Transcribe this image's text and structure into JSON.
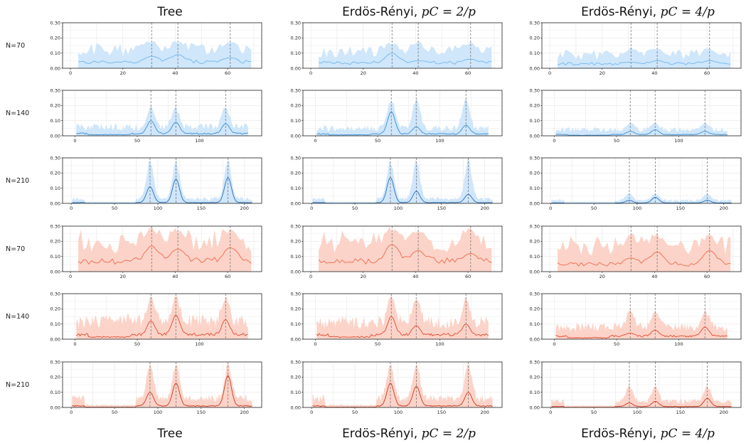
{
  "column_titles_top": [
    {
      "text": "Tree",
      "math": ""
    },
    {
      "text": "Erdös-Rényi, ",
      "math": "pC = 2/p"
    },
    {
      "text": "Erdös-Rényi, ",
      "math": "pC = 4/p"
    }
  ],
  "column_titles_bottom": [
    {
      "text": "Tree",
      "math": ""
    },
    {
      "text": "Erdös-Rényi, ",
      "math": "pC = 2/p"
    },
    {
      "text": "Erdös-Rényi, ",
      "math": "pC = 4/p"
    }
  ],
  "row_labels": [
    "N=70",
    "N=140",
    "N=210",
    "N=70",
    "N=140",
    "N=210"
  ],
  "colors": {
    "blue_line": [
      "#6fb6ee",
      "#3e8fd4",
      "#2a6db5"
    ],
    "blue_band": "#cfe6fb",
    "red_line": [
      "#ee6a4c",
      "#df4b2e",
      "#c9381f"
    ],
    "red_band": "#fcd3c8",
    "vline": "#777777",
    "grid": "#e6e6e6"
  },
  "chart_data": {
    "type": "line",
    "ylim": [
      0,
      0.3
    ],
    "yticks": [
      "0.00",
      "0.10",
      "0.20",
      "0.30"
    ],
    "vlines_p70": [
      31,
      41,
      61
    ],
    "vlines_p210": [
      91,
      121,
      181
    ],
    "grid": true,
    "rows": [
      {
        "label": "N=70",
        "group": "blue",
        "p": 70,
        "xticks": [
          0,
          20,
          40,
          60
        ],
        "panels": [
          {
            "peak_mean": [
              0.08,
              0.09,
              0.07
            ],
            "base_mean": 0.04,
            "base_upper": 0.12,
            "peak_upper": 0.19
          },
          {
            "peak_mean": [
              0.1,
              0.05,
              0.06
            ],
            "base_mean": 0.035,
            "base_upper": 0.11,
            "peak_upper": 0.18
          },
          {
            "peak_mean": [
              0.04,
              0.05,
              0.05
            ],
            "base_mean": 0.03,
            "base_upper": 0.09,
            "peak_upper": 0.14
          }
        ]
      },
      {
        "label": "N=140",
        "group": "blue",
        "p": 140,
        "xticks": [
          0,
          50,
          100
        ],
        "panels": [
          {
            "peak_mean": [
              0.1,
              0.09,
              0.08
            ],
            "base_mean": 0.015,
            "base_upper": 0.06,
            "peak_upper": 0.2
          },
          {
            "peak_mean": [
              0.16,
              0.06,
              0.07
            ],
            "base_mean": 0.012,
            "base_upper": 0.05,
            "peak_upper": 0.26
          },
          {
            "peak_mean": [
              0.03,
              0.04,
              0.03
            ],
            "base_mean": 0.008,
            "base_upper": 0.04,
            "peak_upper": 0.09
          }
        ]
      },
      {
        "label": "N=210",
        "group": "blue",
        "p": 210,
        "xticks": [
          0,
          50,
          100,
          150,
          200
        ],
        "panels": [
          {
            "peak_mean": [
              0.11,
              0.16,
              0.17
            ],
            "base_mean": 0.005,
            "base_upper": 0.03,
            "peak_upper": 0.3
          },
          {
            "peak_mean": [
              0.17,
              0.08,
              0.06
            ],
            "base_mean": 0.005,
            "base_upper": 0.03,
            "peak_upper": 0.3
          },
          {
            "peak_mean": [
              0.02,
              0.04,
              0.02
            ],
            "base_mean": 0.003,
            "base_upper": 0.02,
            "peak_upper": 0.07
          }
        ]
      },
      {
        "label": "N=70",
        "group": "red",
        "p": 70,
        "xticks": [
          0,
          20,
          40,
          60
        ],
        "panels": [
          {
            "peak_mean": [
              0.17,
              0.15,
              0.16
            ],
            "base_mean": 0.07,
            "base_upper": 0.2,
            "peak_upper": 0.3
          },
          {
            "peak_mean": [
              0.18,
              0.14,
              0.12
            ],
            "base_mean": 0.07,
            "base_upper": 0.2,
            "peak_upper": 0.3
          },
          {
            "peak_mean": [
              0.09,
              0.13,
              0.14
            ],
            "base_mean": 0.05,
            "base_upper": 0.17,
            "peak_upper": 0.26
          }
        ]
      },
      {
        "label": "N=140",
        "group": "red",
        "p": 140,
        "xticks": [
          0,
          50,
          100
        ],
        "panels": [
          {
            "peak_mean": [
              0.12,
              0.16,
              0.13
            ],
            "base_mean": 0.03,
            "base_upper": 0.12,
            "peak_upper": 0.3
          },
          {
            "peak_mean": [
              0.15,
              0.09,
              0.1
            ],
            "base_mean": 0.03,
            "base_upper": 0.11,
            "peak_upper": 0.3
          },
          {
            "peak_mean": [
              0.04,
              0.06,
              0.08
            ],
            "base_mean": 0.02,
            "base_upper": 0.08,
            "peak_upper": 0.2
          }
        ]
      },
      {
        "label": "N=210",
        "group": "red",
        "p": 210,
        "xticks": [
          0,
          50,
          100,
          150,
          200
        ],
        "panels": [
          {
            "peak_mean": [
              0.1,
              0.16,
              0.21
            ],
            "base_mean": 0.01,
            "base_upper": 0.06,
            "peak_upper": 0.3
          },
          {
            "peak_mean": [
              0.16,
              0.14,
              0.1
            ],
            "base_mean": 0.01,
            "base_upper": 0.06,
            "peak_upper": 0.3
          },
          {
            "peak_mean": [
              0.03,
              0.04,
              0.06
            ],
            "base_mean": 0.006,
            "base_upper": 0.04,
            "peak_upper": 0.15
          }
        ]
      }
    ]
  }
}
